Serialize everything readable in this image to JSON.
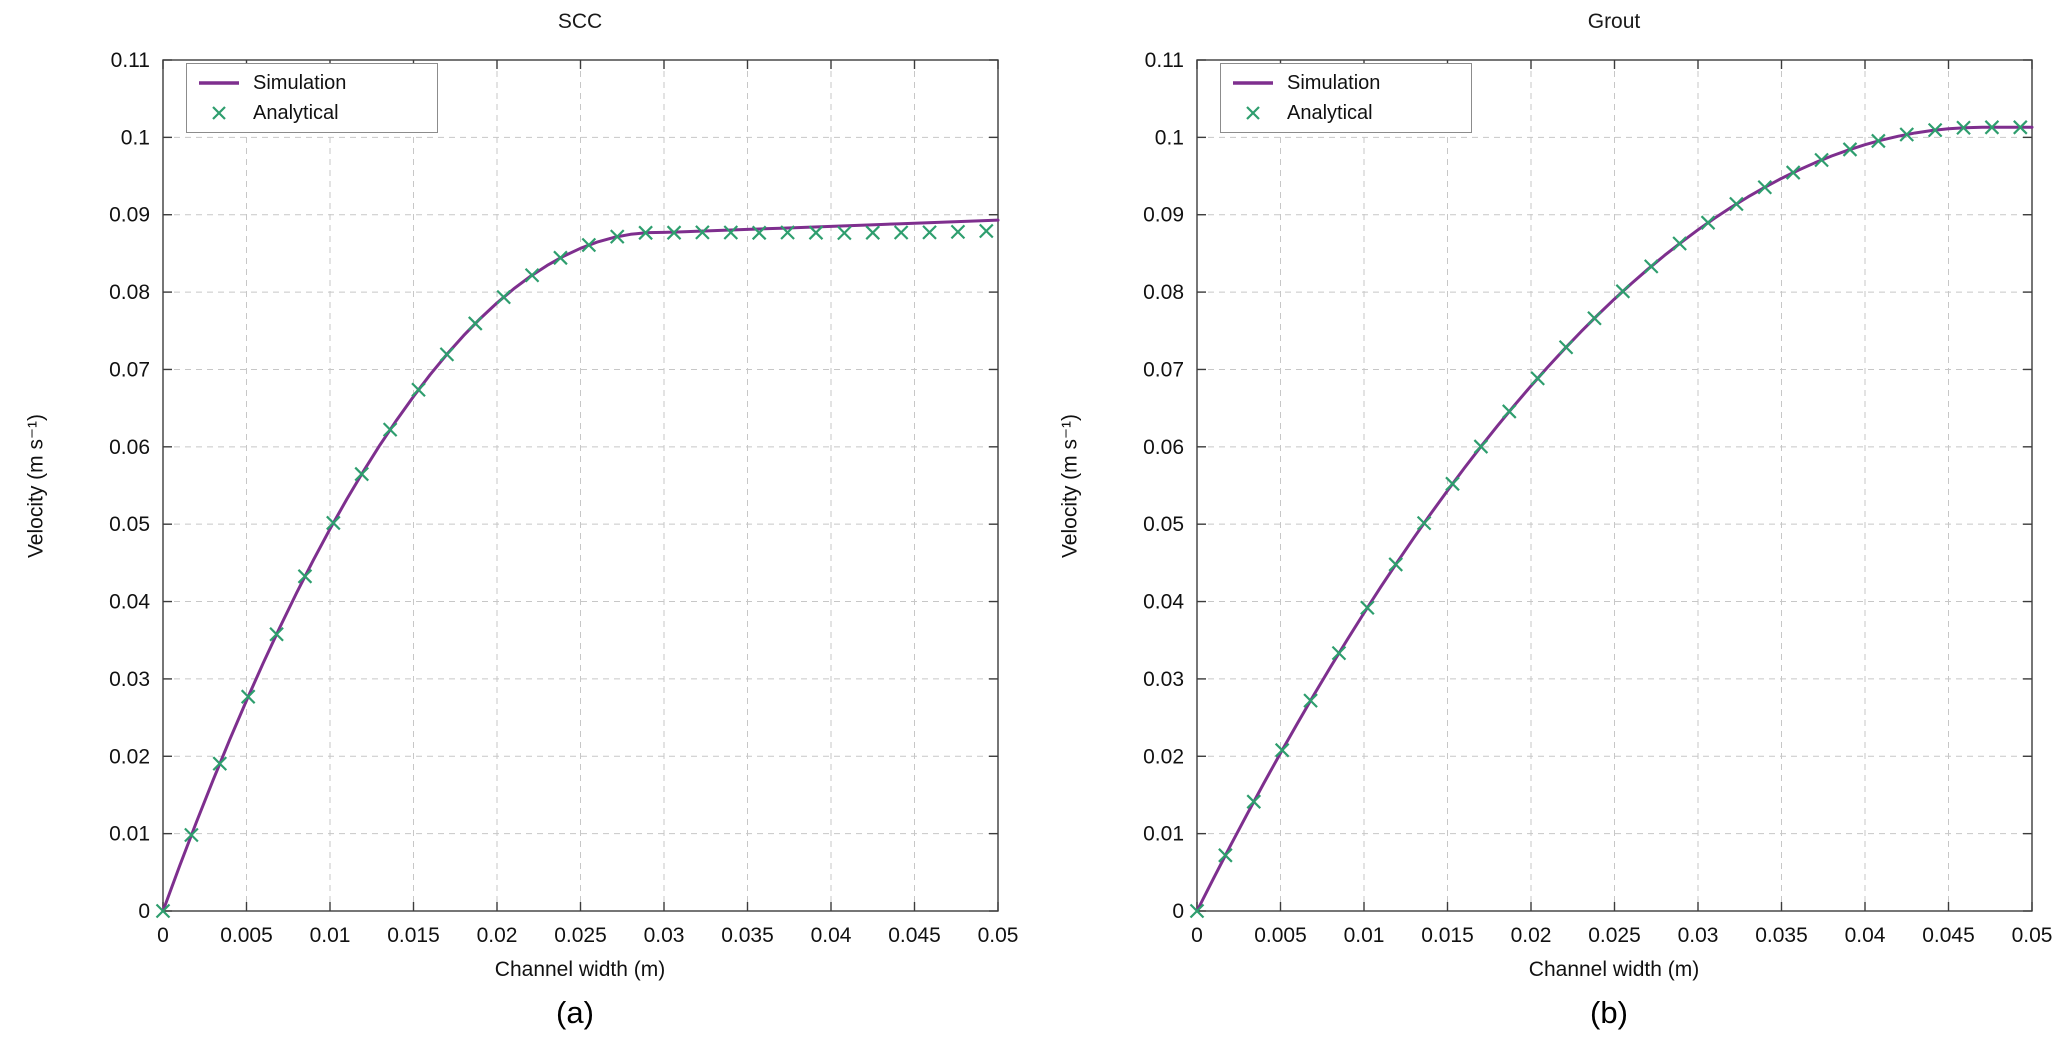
{
  "page": {
    "background": "#ffffff"
  },
  "chart_data": [
    {
      "type": "line",
      "title": "SCC",
      "caption": "(a)",
      "xlabel": "Channel width (m)",
      "ylabel": "Velocity (m s⁻¹)",
      "xlim": [
        0,
        0.05
      ],
      "ylim": [
        0,
        0.11
      ],
      "xticks": [
        0,
        0.005,
        0.01,
        0.015,
        0.02,
        0.025,
        0.03,
        0.035,
        0.04,
        0.045,
        0.05
      ],
      "yticks": [
        0,
        0.01,
        0.02,
        0.03,
        0.04,
        0.05,
        0.06,
        0.07,
        0.08,
        0.09,
        0.1,
        0.11
      ],
      "grid": true,
      "legend": {
        "position": "top-left"
      },
      "series": [
        {
          "name": "Simulation",
          "type": "line",
          "color": "#7E2F8E",
          "x": [
            0,
            0.001,
            0.002,
            0.003,
            0.004,
            0.005,
            0.006,
            0.007,
            0.008,
            0.009,
            0.01,
            0.011,
            0.012,
            0.013,
            0.014,
            0.015,
            0.016,
            0.017,
            0.018,
            0.019,
            0.02,
            0.021,
            0.022,
            0.023,
            0.024,
            0.025,
            0.026,
            0.027,
            0.028,
            0.029,
            0.03,
            0.031,
            0.032,
            0.033,
            0.034,
            0.035,
            0.036,
            0.037,
            0.038,
            0.039,
            0.04,
            0.041,
            0.042,
            0.043,
            0.044,
            0.045,
            0.046,
            0.047,
            0.048,
            0.049,
            0.05
          ],
          "y": [
            0,
            0.00585,
            0.01149,
            0.01693,
            0.02217,
            0.02721,
            0.03205,
            0.03668,
            0.04112,
            0.04535,
            0.04938,
            0.05321,
            0.05684,
            0.06027,
            0.06349,
            0.06651,
            0.06934,
            0.07196,
            0.07438,
            0.07659,
            0.07861,
            0.08042,
            0.08203,
            0.08344,
            0.08465,
            0.08566,
            0.08647,
            0.08707,
            0.08747,
            0.08768,
            0.08772,
            0.08778,
            0.08786,
            0.08794,
            0.08802,
            0.0881,
            0.08818,
            0.08826,
            0.08834,
            0.08842,
            0.0885,
            0.08858,
            0.08866,
            0.08874,
            0.08882,
            0.0889,
            0.08898,
            0.08906,
            0.08914,
            0.08922,
            0.0893
          ]
        },
        {
          "name": "Analytical",
          "type": "scatter",
          "marker": "x",
          "color": "#2E9E6E",
          "x": [
            0,
            0.0017,
            0.0034,
            0.0051,
            0.0068,
            0.0085,
            0.0102,
            0.0119,
            0.0136,
            0.0153,
            0.017,
            0.0187,
            0.0204,
            0.0221,
            0.0238,
            0.0255,
            0.0272,
            0.0289,
            0.0306,
            0.0323,
            0.034,
            0.0357,
            0.0374,
            0.0391,
            0.0408,
            0.0425,
            0.0442,
            0.0459,
            0.0476,
            0.0493
          ],
          "y": [
            0,
            0.00982,
            0.01905,
            0.0277,
            0.03577,
            0.04326,
            0.05016,
            0.05648,
            0.06222,
            0.06738,
            0.07195,
            0.07595,
            0.07935,
            0.08218,
            0.08443,
            0.08609,
            0.08717,
            0.08766,
            0.08768,
            0.08772,
            0.0877,
            0.08766,
            0.0877,
            0.08768,
            0.08764,
            0.08768,
            0.0877,
            0.08772,
            0.08778,
            0.0879
          ]
        }
      ]
    },
    {
      "type": "line",
      "title": "Grout",
      "caption": "(b)",
      "xlabel": "Channel width (m)",
      "ylabel": "Velocity (m s⁻¹)",
      "xlim": [
        0,
        0.05
      ],
      "ylim": [
        0,
        0.11
      ],
      "xticks": [
        0,
        0.005,
        0.01,
        0.015,
        0.02,
        0.025,
        0.03,
        0.035,
        0.04,
        0.045,
        0.05
      ],
      "yticks": [
        0,
        0.01,
        0.02,
        0.03,
        0.04,
        0.05,
        0.06,
        0.07,
        0.08,
        0.09,
        0.1,
        0.11
      ],
      "grid": true,
      "legend": {
        "position": "top-left"
      },
      "series": [
        {
          "name": "Simulation",
          "type": "line",
          "color": "#7E2F8E",
          "x": [
            0,
            0.001,
            0.002,
            0.003,
            0.004,
            0.005,
            0.006,
            0.007,
            0.008,
            0.009,
            0.01,
            0.011,
            0.012,
            0.013,
            0.014,
            0.015,
            0.016,
            0.017,
            0.018,
            0.019,
            0.02,
            0.021,
            0.022,
            0.023,
            0.024,
            0.025,
            0.026,
            0.027,
            0.028,
            0.029,
            0.03,
            0.031,
            0.032,
            0.033,
            0.034,
            0.035,
            0.036,
            0.037,
            0.038,
            0.039,
            0.04,
            0.041,
            0.042,
            0.043,
            0.044,
            0.045,
            0.046,
            0.047,
            0.048,
            0.049,
            0.05
          ],
          "y": [
            0,
            0.00426,
            0.00844,
            0.01252,
            0.01651,
            0.02041,
            0.02421,
            0.02793,
            0.03155,
            0.03508,
            0.03852,
            0.04187,
            0.04512,
            0.04829,
            0.05136,
            0.05434,
            0.05723,
            0.06003,
            0.06273,
            0.06535,
            0.06787,
            0.0703,
            0.07264,
            0.07489,
            0.07704,
            0.07911,
            0.08108,
            0.08296,
            0.08475,
            0.08644,
            0.08805,
            0.08956,
            0.09098,
            0.09231,
            0.09355,
            0.0947,
            0.09575,
            0.09671,
            0.09759,
            0.09836,
            0.09905,
            0.09965,
            0.10015,
            0.10057,
            0.10089,
            0.10112,
            0.10125,
            0.1013,
            0.1013,
            0.1013,
            0.1013
          ]
        },
        {
          "name": "Analytical",
          "type": "scatter",
          "marker": "x",
          "color": "#2E9E6E",
          "x": [
            0,
            0.0017,
            0.0034,
            0.0051,
            0.0068,
            0.0085,
            0.0102,
            0.0119,
            0.0136,
            0.0153,
            0.017,
            0.0187,
            0.0204,
            0.0221,
            0.0238,
            0.0255,
            0.0272,
            0.0289,
            0.0306,
            0.0323,
            0.034,
            0.0357,
            0.0374,
            0.0391,
            0.0408,
            0.0425,
            0.0442,
            0.0459,
            0.0476,
            0.0493
          ],
          "y": [
            0,
            0.0072,
            0.01413,
            0.02079,
            0.02719,
            0.03333,
            0.0392,
            0.0448,
            0.05014,
            0.05522,
            0.06003,
            0.06457,
            0.06885,
            0.07287,
            0.07662,
            0.0801,
            0.08332,
            0.08628,
            0.08897,
            0.09139,
            0.09355,
            0.09545,
            0.09707,
            0.09844,
            0.09954,
            0.10037,
            0.10094,
            0.10124,
            0.1013,
            0.1013
          ]
        }
      ]
    }
  ]
}
